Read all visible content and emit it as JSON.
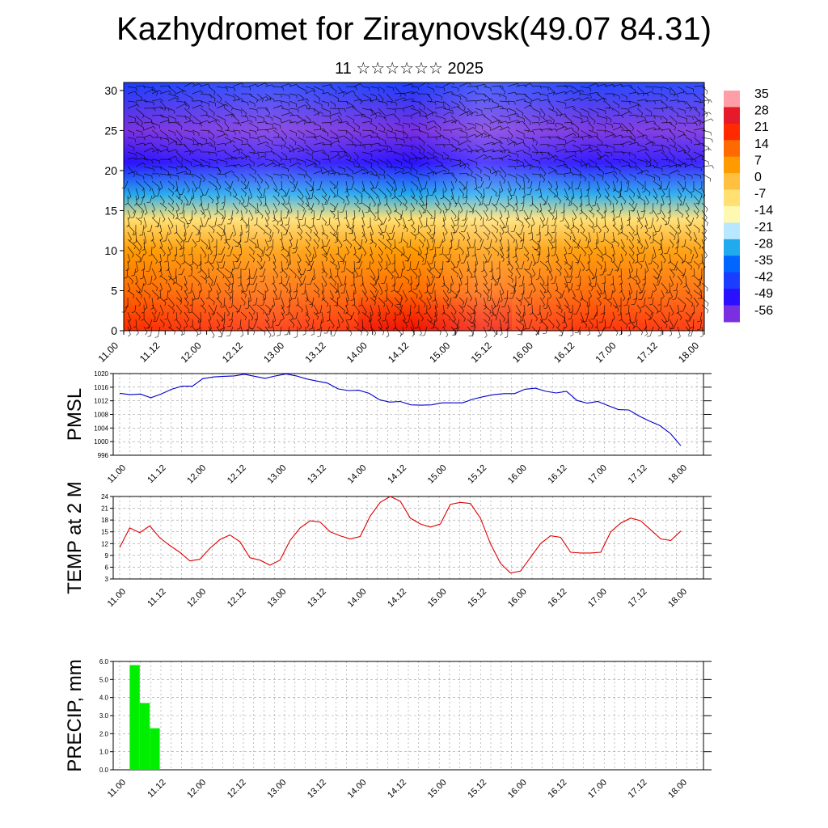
{
  "header": {
    "title": "Kazhydromet for Ziraynovsk(49.07 84.31)",
    "subtitle": "11 ☆☆☆☆☆☆ 2025"
  },
  "chart_data": [
    {
      "type": "heatmap",
      "description_label": "vertical cross-section with wind barbs",
      "y_ticks": [
        "0",
        "5",
        "10",
        "15",
        "20",
        "25",
        "30"
      ],
      "ylim": [
        0,
        31
      ],
      "x_ticks": [
        "11.00",
        "11.12",
        "12.00",
        "12.12",
        "13.00",
        "13.12",
        "14.00",
        "14.12",
        "15.00",
        "15.12",
        "16.00",
        "16.12",
        "17.00",
        "17.12",
        "18.00"
      ],
      "colorbar_labels": [
        "35",
        "28",
        "21",
        "14",
        "7",
        "0",
        "-7",
        "-14",
        "-21",
        "-28",
        "-35",
        "-42",
        "-49",
        "-56"
      ],
      "colorbar_colors": [
        "#ff9ea6",
        "#e51a2a",
        "#ff2a00",
        "#ff6a00",
        "#ff9a00",
        "#ffc040",
        "#ffe070",
        "#fff8b0",
        "#b8e8ff",
        "#22aaee",
        "#0066ff",
        "#1a3dff",
        "#2a10ff",
        "#7a30e0"
      ],
      "temperature_profile": [
        {
          "level": 0,
          "value": 20
        },
        {
          "level": 5,
          "value": 14
        },
        {
          "level": 10,
          "value": 7
        },
        {
          "level": 14,
          "value": -7
        },
        {
          "level": 17,
          "value": -30
        },
        {
          "level": 21,
          "value": -50
        },
        {
          "level": 25,
          "value": -58
        },
        {
          "level": 31,
          "value": -45
        }
      ]
    },
    {
      "type": "line",
      "ylabel": "PMSL",
      "y_ticks": [
        "996",
        "1000",
        "1004",
        "1008",
        "1012",
        "1016",
        "1020"
      ],
      "ylim": [
        996,
        1020
      ],
      "x_ticks": [
        "11.00",
        "11.12",
        "12.00",
        "12.12",
        "13.00",
        "13.12",
        "14.00",
        "14.12",
        "15.00",
        "15.12",
        "16.00",
        "16.12",
        "17.00",
        "17.12",
        "18.00"
      ],
      "color": "#0000cc",
      "values": [
        1014.2,
        1013.8,
        1014.0,
        1012.9,
        1014.0,
        1015.4,
        1016.3,
        1016.3,
        1018.5,
        1019.0,
        1019.2,
        1019.3,
        1019.8,
        1019.2,
        1018.6,
        1019.3,
        1019.9,
        1019.3,
        1018.4,
        1017.8,
        1017.2,
        1015.5,
        1015.0,
        1015.1,
        1014.2,
        1012.3,
        1011.6,
        1011.8,
        1010.8,
        1010.7,
        1010.8,
        1011.4,
        1011.4,
        1011.4,
        1012.5,
        1013.2,
        1013.8,
        1014.1,
        1014.1,
        1015.4,
        1015.7,
        1014.8,
        1014.3,
        1014.8,
        1012.1,
        1011.3,
        1011.8,
        1010.6,
        1009.4,
        1009.3,
        1007.5,
        1006.0,
        1004.7,
        1002.4,
        998.8
      ]
    },
    {
      "type": "line",
      "ylabel": "TEMP at 2 M",
      "y_ticks": [
        "3",
        "6",
        "9",
        "12",
        "15",
        "18",
        "21",
        "24"
      ],
      "ylim": [
        3,
        24
      ],
      "x_ticks": [
        "11.00",
        "11.12",
        "12.00",
        "12.12",
        "13.00",
        "13.12",
        "14.00",
        "14.12",
        "15.00",
        "15.12",
        "16.00",
        "16.12",
        "17.00",
        "17.12",
        "18.00"
      ],
      "color": "#dd0000",
      "values": [
        11.0,
        16.0,
        14.8,
        16.5,
        13.5,
        11.5,
        9.8,
        7.6,
        8.0,
        10.8,
        13.0,
        14.2,
        12.5,
        8.4,
        7.8,
        6.5,
        7.8,
        12.8,
        16.0,
        17.8,
        17.5,
        15.0,
        14.0,
        13.2,
        13.8,
        19.0,
        22.5,
        24.0,
        22.8,
        18.5,
        17.0,
        16.2,
        17.0,
        22.0,
        22.5,
        22.2,
        18.5,
        12.0,
        7.0,
        4.5,
        5.0,
        8.5,
        12.0,
        14.0,
        13.6,
        9.8,
        9.6,
        9.6,
        9.8,
        15.0,
        17.2,
        18.5,
        17.8,
        15.5,
        13.2,
        12.8,
        15.2
      ]
    },
    {
      "type": "bar",
      "ylabel": "PRECIP, mm",
      "y_ticks": [
        "0.0",
        "1.0",
        "2.0",
        "3.0",
        "4.0",
        "5.0",
        "6.0"
      ],
      "ylim": [
        0,
        6
      ],
      "x_ticks": [
        "11.00",
        "11.12",
        "12.00",
        "12.12",
        "13.00",
        "13.12",
        "14.00",
        "14.12",
        "15.00",
        "15.12",
        "16.00",
        "16.12",
        "17.00",
        "17.12",
        "18.00"
      ],
      "color": "#00ee00",
      "bars": [
        {
          "start_step": 3,
          "end_step": 6,
          "value": 5.8
        },
        {
          "start_step": 6,
          "end_step": 9,
          "value": 3.7
        },
        {
          "start_step": 9,
          "end_step": 12,
          "value": 2.3
        }
      ],
      "steps_total": 168
    }
  ]
}
